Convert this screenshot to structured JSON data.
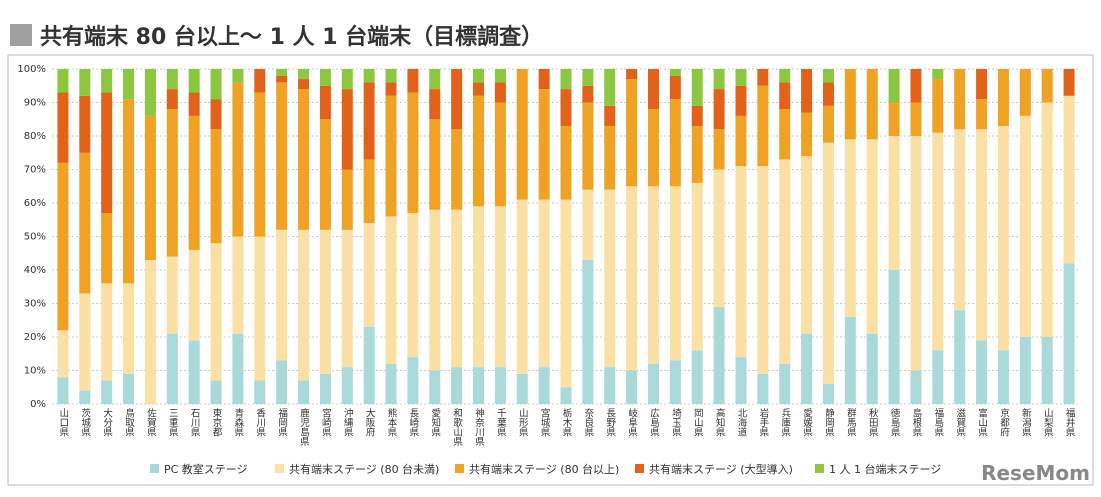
{
  "chart_data": {
    "type": "stacked_bar",
    "title": "共有端末 80 台以上～ 1 人 1 台端末（目標調査）",
    "watermark": "ReseMom",
    "categories": [
      "山口県",
      "茨城県",
      "大分県",
      "鳥取県",
      "佐賀県",
      "三重県",
      "石川県",
      "東京都",
      "青森県",
      "香川県",
      "福岡県",
      "鹿児島県",
      "宮崎県",
      "沖縄県",
      "大阪府",
      "熊本県",
      "長崎県",
      "愛知県",
      "和歌山県",
      "神奈川県",
      "千葉県",
      "山形県",
      "宮城県",
      "栃木県",
      "奈良県",
      "長野県",
      "岐阜県",
      "広島県",
      "埼玉県",
      "岡山県",
      "高知県",
      "北海道",
      "岩手県",
      "兵庫県",
      "愛媛県",
      "静岡県",
      "群馬県",
      "秋田県",
      "徳島県",
      "島根県",
      "福島県",
      "滋賀県",
      "富山県",
      "京都府",
      "新潟県",
      "山梨県",
      "福井県"
    ],
    "series": [
      {
        "name": "PC 教室ステージ",
        "color": "#a9d9d9",
        "values": [
          8,
          4,
          7,
          9,
          0,
          21,
          19,
          7,
          21,
          7,
          13,
          7,
          9,
          11,
          23,
          12,
          14,
          10,
          11,
          11,
          11,
          9,
          11,
          5,
          43,
          11,
          10,
          12,
          13,
          16,
          29,
          14,
          9,
          12,
          21,
          6,
          26,
          21,
          40,
          10,
          16,
          28,
          19,
          16,
          20,
          20,
          42
        ]
      },
      {
        "name": "共有端末ステージ (80 台未満)",
        "color": "#fbe0a6",
        "values": [
          14,
          29,
          29,
          27,
          43,
          23,
          27,
          41,
          29,
          43,
          39,
          45,
          43,
          41,
          31,
          44,
          43,
          48,
          47,
          48,
          48,
          52,
          50,
          56,
          21,
          53,
          55,
          53,
          52,
          50,
          41,
          57,
          62,
          61,
          53,
          72,
          53,
          58,
          40,
          70,
          65,
          54,
          63,
          67,
          66,
          70,
          50
        ]
      },
      {
        "name": "共有端末ステージ (80 台以上)",
        "color": "#f0a224",
        "values": [
          50,
          42,
          21,
          55,
          43,
          44,
          40,
          34,
          46,
          43,
          44,
          42,
          33,
          18,
          19,
          36,
          36,
          27,
          24,
          33,
          31,
          39,
          33,
          22,
          26,
          19,
          32,
          23,
          26,
          17,
          12,
          15,
          24,
          15,
          13,
          11,
          21,
          21,
          10,
          10,
          16,
          18,
          9,
          17,
          14,
          10,
          0
        ]
      },
      {
        "name": "共有端末ステージ (大型導入)",
        "color": "#e2621a",
        "values": [
          21,
          17,
          36,
          0,
          0,
          6,
          7,
          9,
          0,
          7,
          2,
          3,
          10,
          24,
          23,
          4,
          7,
          9,
          18,
          4,
          6,
          0,
          6,
          11,
          5,
          6,
          3,
          12,
          7,
          6,
          12,
          9,
          5,
          8,
          13,
          7,
          0,
          0,
          0,
          10,
          0,
          0,
          9,
          0,
          0,
          0,
          8
        ]
      },
      {
        "name": "1 人 1 台端末ステージ",
        "color": "#8dc63f",
        "values": [
          7,
          8,
          7,
          9,
          14,
          6,
          7,
          9,
          4,
          0,
          2,
          3,
          5,
          6,
          4,
          4,
          0,
          6,
          0,
          4,
          4,
          0,
          0,
          6,
          5,
          11,
          0,
          0,
          2,
          11,
          6,
          5,
          0,
          4,
          0,
          4,
          0,
          0,
          10,
          0,
          3,
          0,
          0,
          0,
          0,
          0,
          0
        ]
      }
    ],
    "ylim": [
      0,
      100
    ],
    "yticks": [
      {
        "value": 0,
        "label": "0%"
      },
      {
        "value": 10,
        "label": "10%"
      },
      {
        "value": 20,
        "label": "20%"
      },
      {
        "value": 30,
        "label": "30%"
      },
      {
        "value": 40,
        "label": "40%"
      },
      {
        "value": 50,
        "label": "50%"
      },
      {
        "value": 60,
        "label": "60%"
      },
      {
        "value": 70,
        "label": "70%"
      },
      {
        "value": 80,
        "label": "80%"
      },
      {
        "value": 90,
        "label": "90%"
      },
      {
        "value": 100,
        "label": "100%"
      }
    ],
    "grid": true
  }
}
